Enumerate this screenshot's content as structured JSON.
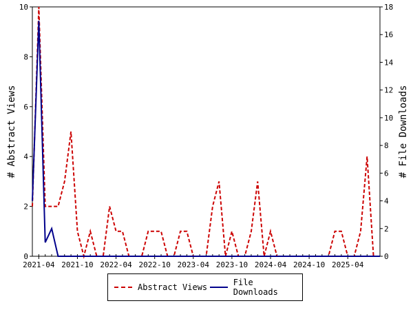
{
  "chart_data": {
    "type": "line",
    "ylabel": "# Abstract Views",
    "y2label": "# File Downloads",
    "ylim": [
      0,
      10
    ],
    "y2lim": [
      0,
      18
    ],
    "yticks": [
      "0",
      "2",
      "4",
      "6",
      "8",
      "10"
    ],
    "y2ticks": [
      "0",
      "2",
      "4",
      "6",
      "8",
      "10",
      "12",
      "14",
      "16",
      "18"
    ],
    "xticks": [
      "2021-04",
      "2021-10",
      "2022-04",
      "2022-10",
      "2023-04",
      "2023-10",
      "2024-04",
      "2024-10",
      "2025-04"
    ],
    "grid": false,
    "legend_position": "bottom",
    "x": [
      "2021-03",
      "2021-04",
      "2021-05",
      "2021-06",
      "2021-07",
      "2021-08",
      "2021-09",
      "2021-10",
      "2021-11",
      "2021-12",
      "2022-01",
      "2022-02",
      "2022-03",
      "2022-04",
      "2022-05",
      "2022-06",
      "2022-07",
      "2022-08",
      "2022-09",
      "2022-10",
      "2022-11",
      "2022-12",
      "2023-01",
      "2023-02",
      "2023-03",
      "2023-04",
      "2023-05",
      "2023-06",
      "2023-07",
      "2023-08",
      "2023-09",
      "2023-10",
      "2023-11",
      "2023-12",
      "2024-01",
      "2024-02",
      "2024-03",
      "2024-04",
      "2024-05",
      "2024-06",
      "2024-07",
      "2024-08",
      "2024-09",
      "2024-10",
      "2024-11",
      "2024-12",
      "2025-01",
      "2025-02",
      "2025-03",
      "2025-04",
      "2025-05",
      "2025-06",
      "2025-07",
      "2025-08",
      "2025-09"
    ],
    "series": [
      {
        "name": "Abstract Views",
        "axis": "left",
        "color": "#cc0000",
        "dashed": true,
        "values": [
          2,
          10,
          2,
          2,
          2,
          3,
          5,
          1,
          0,
          1,
          0,
          0,
          2,
          1,
          1,
          0,
          0,
          0,
          1,
          1,
          1,
          0,
          0,
          1,
          1,
          0,
          0,
          0,
          2,
          3,
          0,
          1,
          0,
          0,
          1,
          3,
          0,
          1,
          0,
          0,
          0,
          0,
          0,
          0,
          0,
          0,
          0,
          1,
          1,
          0,
          0,
          1,
          4,
          0,
          0
        ]
      },
      {
        "name": "File Downloads",
        "axis": "right",
        "color": "#00008b",
        "dashed": false,
        "values": [
          4,
          17,
          1,
          2,
          0,
          0,
          0,
          0,
          0,
          0,
          0,
          0,
          0,
          0,
          0,
          0,
          0,
          0,
          0,
          0,
          0,
          0,
          0,
          0,
          0,
          0,
          0,
          0,
          0,
          0,
          0,
          0,
          0,
          0,
          0,
          0,
          0,
          0,
          0,
          0,
          0,
          0,
          0,
          0,
          0,
          0,
          0,
          0,
          0,
          0,
          0,
          0,
          0,
          0,
          0
        ]
      }
    ]
  }
}
